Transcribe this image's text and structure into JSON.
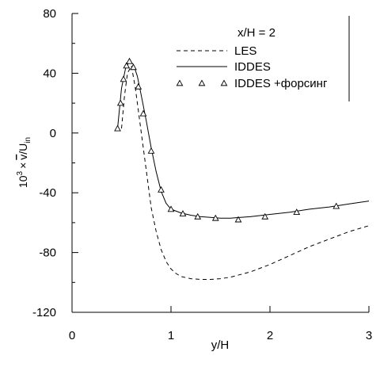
{
  "chart_data": {
    "type": "line",
    "title": "x/H = 2",
    "xlabel": "y/H",
    "ylabel": {
      "main": "10",
      "exp": "3",
      "times": "×",
      "var": "v",
      "div": "/U",
      "sub": "in"
    },
    "xlim": [
      0,
      3
    ],
    "ylim": [
      -120,
      80
    ],
    "xticks": [
      0,
      1,
      2,
      3
    ],
    "yticks": [
      80,
      40,
      0,
      -40,
      -80,
      -120
    ],
    "grid": false,
    "legend_position": "top-right",
    "series": [
      {
        "name": "LES",
        "style": "dashed",
        "x": [
          0.5,
          0.53,
          0.56,
          0.6,
          0.64,
          0.68,
          0.72,
          0.76,
          0.8,
          0.85,
          0.9,
          0.95,
          1.0,
          1.05,
          1.1,
          1.2,
          1.3,
          1.4,
          1.5,
          1.6,
          1.8,
          2.0,
          2.2,
          2.4,
          2.6,
          2.8,
          3.0
        ],
        "y": [
          3,
          25,
          40,
          45,
          30,
          10,
          -10,
          -30,
          -50,
          -66,
          -78,
          -86,
          -91,
          -94,
          -96,
          -97.5,
          -98,
          -98,
          -97.5,
          -96.5,
          -93,
          -88,
          -82,
          -76,
          -71,
          -66,
          -62
        ]
      },
      {
        "name": "IDDES",
        "style": "solid",
        "x": [
          0.46,
          0.5,
          0.54,
          0.58,
          0.62,
          0.66,
          0.7,
          0.75,
          0.8,
          0.85,
          0.9,
          0.95,
          1.0,
          1.1,
          1.2,
          1.3,
          1.4,
          1.5,
          1.6,
          1.7,
          1.8,
          2.0,
          2.2,
          2.4,
          2.6,
          2.8,
          3.0
        ],
        "y": [
          3,
          30,
          43,
          48,
          46,
          38,
          25,
          8,
          -10,
          -26,
          -39,
          -47,
          -51,
          -53.5,
          -55,
          -56,
          -56.5,
          -57,
          -57,
          -56.5,
          -56,
          -54.5,
          -53,
          -51,
          -49.5,
          -47.5,
          -45.5
        ]
      },
      {
        "name": "IDDES +форсинг",
        "style": "triangles",
        "x": [
          0.46,
          0.49,
          0.52,
          0.55,
          0.58,
          0.62,
          0.67,
          0.72,
          0.8,
          0.9,
          1.0,
          1.12,
          1.27,
          1.45,
          1.68,
          1.95,
          2.27,
          2.67
        ],
        "y": [
          3,
          20,
          36,
          45,
          48,
          44,
          31,
          13,
          -12,
          -38,
          -51,
          -54,
          -56,
          -57,
          -58,
          -56,
          -53,
          -49
        ]
      }
    ]
  }
}
